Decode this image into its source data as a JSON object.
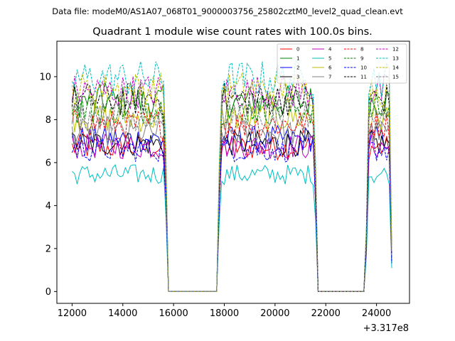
{
  "chart_data": {
    "type": "line",
    "suptitle": "Data file: modeM0/AS1A07_068T01_9000003756_25802cztM0_level2_quad_clean.evt",
    "title": "Quadrant 1 module wise count rates with 100.0s bins.",
    "xlabel": "",
    "ylabel": "",
    "x_offset_label": "+3.317e8",
    "xlim": [
      11400,
      25300
    ],
    "ylim": [
      -0.55,
      11.65
    ],
    "x_ticks": [
      12000,
      14000,
      16000,
      18000,
      20000,
      22000,
      24000
    ],
    "y_ticks": [
      0,
      2,
      4,
      6,
      8,
      10
    ],
    "x_tick_labels": [
      "12000",
      "14000",
      "16000",
      "18000",
      "20000",
      "22000",
      "24000"
    ],
    "y_tick_labels": [
      "0",
      "2",
      "4",
      "6",
      "8",
      "10"
    ],
    "segments": [
      {
        "start": 12000,
        "end": 15600
      },
      {
        "start": 17900,
        "end": 21500
      },
      {
        "start": 23700,
        "end": 24500
      }
    ],
    "gap_points": [
      {
        "x": 15700,
        "factor": 0.65
      },
      {
        "x": 15800,
        "factor": 0
      },
      {
        "x": 17700,
        "factor": 0
      },
      {
        "x": 17800,
        "factor": 0.6
      },
      {
        "x": 21600,
        "factor": 0.6
      },
      {
        "x": 21700,
        "factor": 0
      },
      {
        "x": 23500,
        "factor": 0
      },
      {
        "x": 23600,
        "factor": 0.3
      }
    ],
    "end_point": {
      "x": 24600,
      "factor": 0.2
    },
    "series": [
      {
        "name": "0",
        "mean": 6.7,
        "color": "#ff0000",
        "dash": "solid"
      },
      {
        "name": "1",
        "mean": 8.85,
        "color": "#008000",
        "dash": "solid"
      },
      {
        "name": "2",
        "mean": 7.1,
        "color": "#0000ff",
        "dash": "solid"
      },
      {
        "name": "3",
        "mean": 6.9,
        "color": "#000000",
        "dash": "solid"
      },
      {
        "name": "4",
        "mean": 6.75,
        "color": "#bf00bf",
        "dash": "solid"
      },
      {
        "name": "5",
        "mean": 5.45,
        "color": "#00bfbf",
        "dash": "solid"
      },
      {
        "name": "6",
        "mean": 8.1,
        "color": "#bfbf00",
        "dash": "solid"
      },
      {
        "name": "7",
        "mean": 7.4,
        "color": "#808080",
        "dash": "solid"
      },
      {
        "name": "8",
        "mean": 7.8,
        "color": "#ff0000",
        "dash": "dashed"
      },
      {
        "name": "9",
        "mean": 8.5,
        "color": "#008000",
        "dash": "dashed"
      },
      {
        "name": "10",
        "mean": 6.6,
        "color": "#0000ff",
        "dash": "dashed"
      },
      {
        "name": "11",
        "mean": 8.95,
        "color": "#000000",
        "dash": "dashed"
      },
      {
        "name": "12",
        "mean": 9.3,
        "color": "#bf00bf",
        "dash": "dashed"
      },
      {
        "name": "13",
        "mean": 9.9,
        "color": "#00bfbf",
        "dash": "dashed"
      },
      {
        "name": "14",
        "mean": 9.4,
        "color": "#bfbf00",
        "dash": "dashed"
      },
      {
        "name": "15",
        "mean": 8.2,
        "color": "#808080",
        "dash": "dashed"
      }
    ],
    "legend_location": "top-right",
    "grid": false
  }
}
